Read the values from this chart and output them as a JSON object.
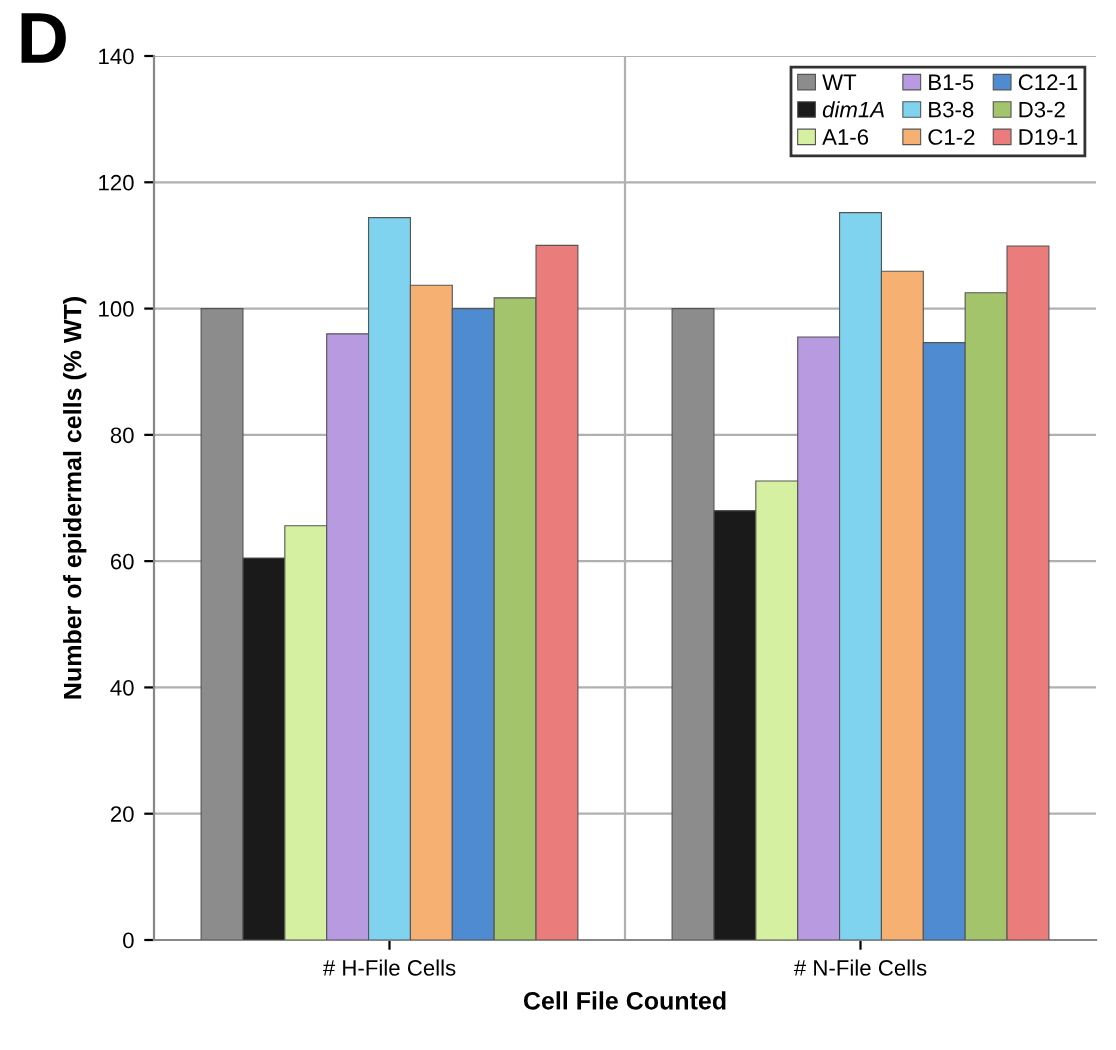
{
  "chart_data": {
    "type": "bar",
    "xlabel": "Cell File Counted",
    "ylabel": "Number of epidermal cells (% WT)",
    "annotations": [
      "D"
    ],
    "categories": [
      "# H-File Cells",
      "# N-File Cells"
    ],
    "series": [
      {
        "name": "WT",
        "color": "#8c8c8c",
        "values": [
          100,
          100
        ]
      },
      {
        "name": "dim1A",
        "color": "#1a1a1a",
        "values": [
          60.5,
          68
        ]
      },
      {
        "name": "A1-6",
        "color": "#d4f0a0",
        "values": [
          65.6,
          72.7
        ]
      },
      {
        "name": "B1-5",
        "color": "#b79ae0",
        "values": [
          96,
          95.5
        ]
      },
      {
        "name": "B3-8",
        "color": "#7fd3ef",
        "values": [
          114.4,
          115.2
        ]
      },
      {
        "name": "C1-2",
        "color": "#f5b072",
        "values": [
          103.7,
          105.9
        ]
      },
      {
        "name": "C12-1",
        "color": "#4f8bd0",
        "values": [
          100,
          94.6
        ]
      },
      {
        "name": "D3-2",
        "color": "#a3c46a",
        "values": [
          101.7,
          102.5
        ]
      },
      {
        "name": "D19-1",
        "color": "#ea7c7c",
        "values": [
          110,
          109.9
        ]
      }
    ],
    "ylim": [
      0,
      140
    ],
    "yticks": [
      0,
      20,
      40,
      60,
      80,
      100,
      120,
      140
    ],
    "grid": true,
    "legend": "top right"
  }
}
